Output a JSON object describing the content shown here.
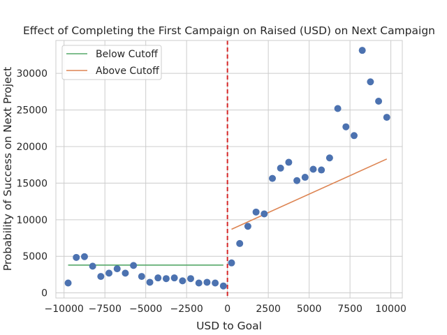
{
  "chart_data": {
    "type": "scatter",
    "title": "Effect of Completing the First Campaign on Raised (USD) on Next Campaign",
    "xlabel": "USD to Goal",
    "ylabel": "Probability of Success on Next Project",
    "xlim": [
      -10500,
      10700
    ],
    "ylim": [
      -700,
      34500
    ],
    "xticks": [
      -10000,
      -7500,
      -5000,
      -2500,
      0,
      2500,
      5000,
      7500,
      10000
    ],
    "xtick_labels": [
      "−10000",
      "−7500",
      "−5000",
      "−2500",
      "0",
      "2500",
      "5000",
      "7500",
      "10000"
    ],
    "yticks": [
      0,
      5000,
      10000,
      15000,
      20000,
      25000,
      30000
    ],
    "ytick_labels": [
      "0",
      "5000",
      "10000",
      "15000",
      "20000",
      "25000",
      "30000"
    ],
    "grid": true,
    "legend_position": "top-left",
    "cutoff": 0,
    "colors": {
      "points": "#4c72b0",
      "below": "#55a868",
      "above": "#dd8452",
      "cutoff": "#d62728",
      "grid": "#cccccc",
      "axes": "#cccccc"
    },
    "points": {
      "x": [
        -9750,
        -9250,
        -8750,
        -8250,
        -7750,
        -7250,
        -6750,
        -6250,
        -5750,
        -5250,
        -4750,
        -4250,
        -3750,
        -3250,
        -2750,
        -2250,
        -1750,
        -1250,
        -750,
        -250,
        250,
        750,
        1250,
        1750,
        2250,
        2750,
        3250,
        3750,
        4250,
        4750,
        5250,
        5750,
        6250,
        6750,
        7250,
        7750,
        8250,
        8750,
        9250,
        9750
      ],
      "y": [
        1350,
        4850,
        4950,
        3650,
        2250,
        2700,
        3300,
        2700,
        3750,
        2250,
        1450,
        2050,
        1950,
        2050,
        1650,
        1950,
        1350,
        1450,
        1350,
        950,
        4100,
        6750,
        9100,
        11050,
        10800,
        15650,
        17050,
        17850,
        15350,
        15800,
        16900,
        16800,
        18450,
        25200,
        22700,
        21500,
        33150,
        28850,
        26200,
        24000
      ]
    },
    "series": [
      {
        "name": "Below Cutoff",
        "x": [
          -9750,
          -250
        ],
        "y": [
          3800,
          3800
        ]
      },
      {
        "name": "Above Cutoff",
        "x": [
          250,
          9750
        ],
        "y": [
          8700,
          18300
        ]
      }
    ]
  }
}
